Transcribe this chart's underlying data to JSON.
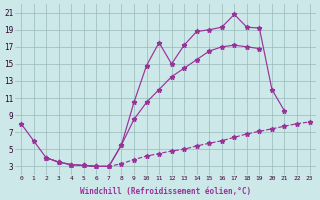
{
  "bg_color": "#cce8e8",
  "grid_color": "#99bbbb",
  "line_color": "#993399",
  "xlabel": "Windchill (Refroidissement éolien,°C)",
  "xticks": [
    0,
    1,
    2,
    3,
    4,
    5,
    6,
    7,
    8,
    9,
    10,
    11,
    12,
    13,
    14,
    15,
    16,
    17,
    18,
    19,
    20,
    21,
    22,
    23
  ],
  "yticks": [
    3,
    5,
    7,
    9,
    11,
    13,
    15,
    17,
    19,
    21
  ],
  "xlim": [
    -0.5,
    23.5
  ],
  "ylim": [
    2.0,
    22.0
  ],
  "series1_x": [
    0,
    1,
    2,
    3,
    4,
    5,
    6,
    7,
    8,
    9,
    10,
    11,
    12,
    13,
    14,
    15,
    16,
    17,
    18,
    19,
    20,
    21
  ],
  "series1_y": [
    8,
    6,
    4,
    3.5,
    3.2,
    3.1,
    3.0,
    3.0,
    5.5,
    10.5,
    14.8,
    17.5,
    15.0,
    17.2,
    18.8,
    19.0,
    19.3,
    20.8,
    19.3,
    19.2,
    12.0,
    9.5
  ],
  "series2_x": [
    2,
    3,
    4,
    5,
    6,
    7,
    8,
    9,
    10,
    11,
    12,
    13,
    14,
    15,
    16,
    17,
    18,
    19,
    20,
    21,
    22,
    23
  ],
  "series2_y": [
    4.0,
    3.5,
    3.2,
    3.1,
    3.0,
    3.0,
    3.3,
    3.8,
    4.2,
    4.5,
    4.8,
    5.0,
    5.4,
    5.7,
    6.0,
    6.4,
    6.8,
    7.1,
    7.4,
    7.7,
    8.0,
    8.2
  ],
  "series3_x": [
    2,
    3,
    4,
    5,
    6,
    7,
    8,
    9,
    10,
    11,
    12,
    13,
    14,
    15,
    16,
    17,
    18,
    19
  ],
  "series3_y": [
    4.0,
    3.5,
    3.2,
    3.1,
    3.0,
    3.0,
    5.5,
    8.5,
    10.5,
    12.0,
    13.5,
    14.5,
    15.5,
    16.5,
    17.0,
    17.2,
    17.0,
    16.8
  ]
}
